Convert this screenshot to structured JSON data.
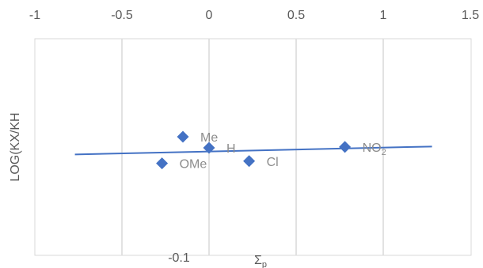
{
  "chart_data": {
    "type": "scatter",
    "title": "",
    "xlabel": "Σp",
    "ylabel": "LOG(KX/KH",
    "xlim": [
      -1,
      1.5
    ],
    "x_ticks": [
      "-1",
      "-0.5",
      "0",
      "0.5",
      "1",
      "1.5"
    ],
    "y_tick_label": "-0.1",
    "x_axis_position": "top",
    "grid": "vertical",
    "legend": "none",
    "marker": "diamond",
    "color": "#4472C4",
    "points": [
      {
        "label": "Me",
        "x": -0.15,
        "y": 0.025
      },
      {
        "label": "H",
        "x": 0.0,
        "y": 0.0
      },
      {
        "label": "OMe",
        "x": -0.27,
        "y": -0.035
      },
      {
        "label": "Cl",
        "x": 0.23,
        "y": -0.03
      },
      {
        "label": "NO",
        "label_sub": "2",
        "x": 0.78,
        "y": 0.002
      }
    ],
    "trendline": {
      "x": [
        -0.77,
        1.28
      ],
      "y": [
        -0.015,
        0.003
      ]
    }
  }
}
